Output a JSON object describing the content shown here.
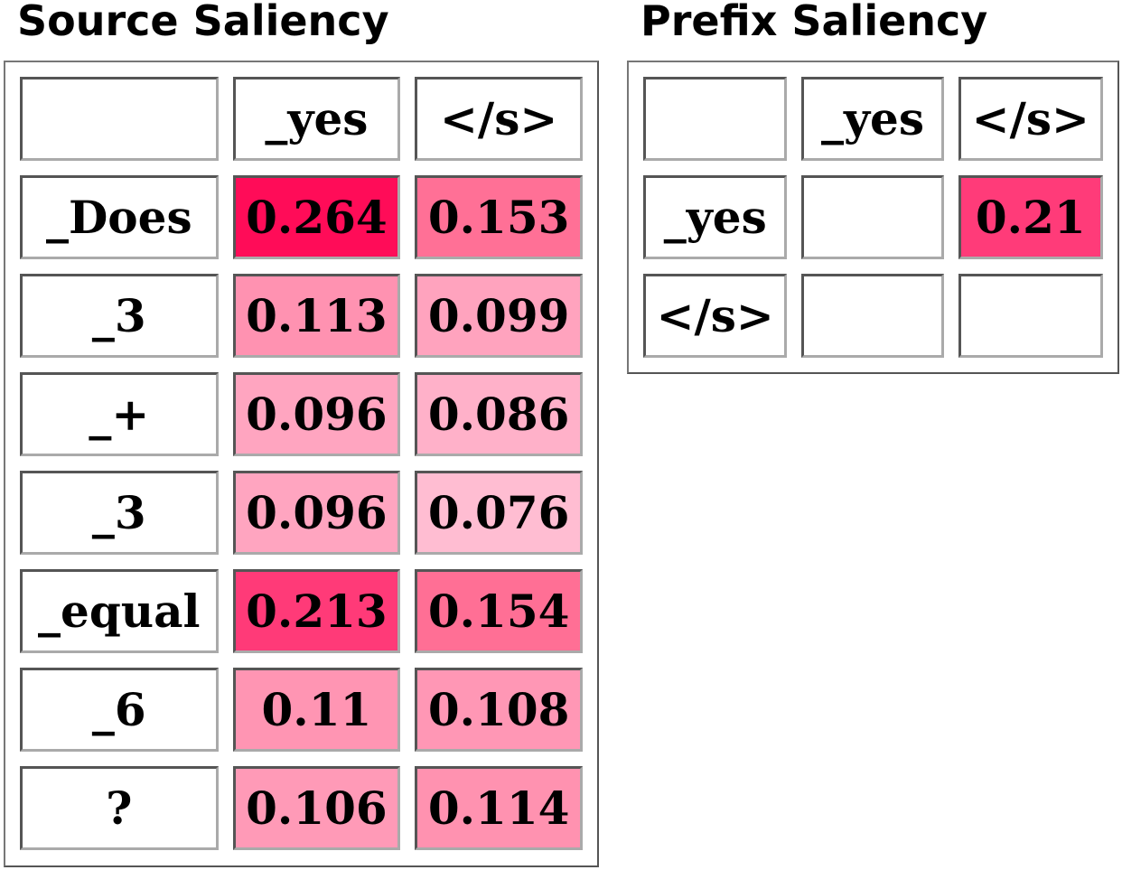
{
  "source": {
    "title": "Source Saliency",
    "columns": [
      "",
      "_yes",
      "</s>"
    ],
    "rows": [
      {
        "label": "_Does",
        "values": [
          "0.264",
          "0.153"
        ],
        "colors": [
          "#ff0c58",
          "#ff7096"
        ]
      },
      {
        "label": "_3",
        "values": [
          "0.113",
          "0.099"
        ],
        "colors": [
          "#ff92b1",
          "#ffa3be"
        ]
      },
      {
        "label": "_+",
        "values": [
          "0.096",
          "0.086"
        ],
        "colors": [
          "#ffa5c0",
          "#ffb1c9"
        ]
      },
      {
        "label": "_3",
        "values": [
          "0.096",
          "0.076"
        ],
        "colors": [
          "#ffa5c0",
          "#ffbdd2"
        ]
      },
      {
        "label": "_equal",
        "values": [
          "0.213",
          "0.154"
        ],
        "colors": [
          "#ff3a78",
          "#ff6f95"
        ]
      },
      {
        "label": "_6",
        "values": [
          "0.11",
          "0.108"
        ],
        "colors": [
          "#ff95b3",
          "#ff97b5"
        ]
      },
      {
        "label": "?",
        "values": [
          "0.106",
          "0.114"
        ],
        "colors": [
          "#ff9ab7",
          "#ff92b0"
        ]
      }
    ]
  },
  "prefix": {
    "title": "Prefix Saliency",
    "columns": [
      "",
      "_yes",
      "</s>"
    ],
    "rows": [
      {
        "label": "_yes",
        "values": [
          "",
          "0.21"
        ],
        "colors": [
          "#ffffff",
          "#ff3b79"
        ]
      },
      {
        "label": "</s>",
        "values": [
          "",
          ""
        ],
        "colors": [
          "#ffffff",
          "#ffffff"
        ]
      }
    ]
  }
}
